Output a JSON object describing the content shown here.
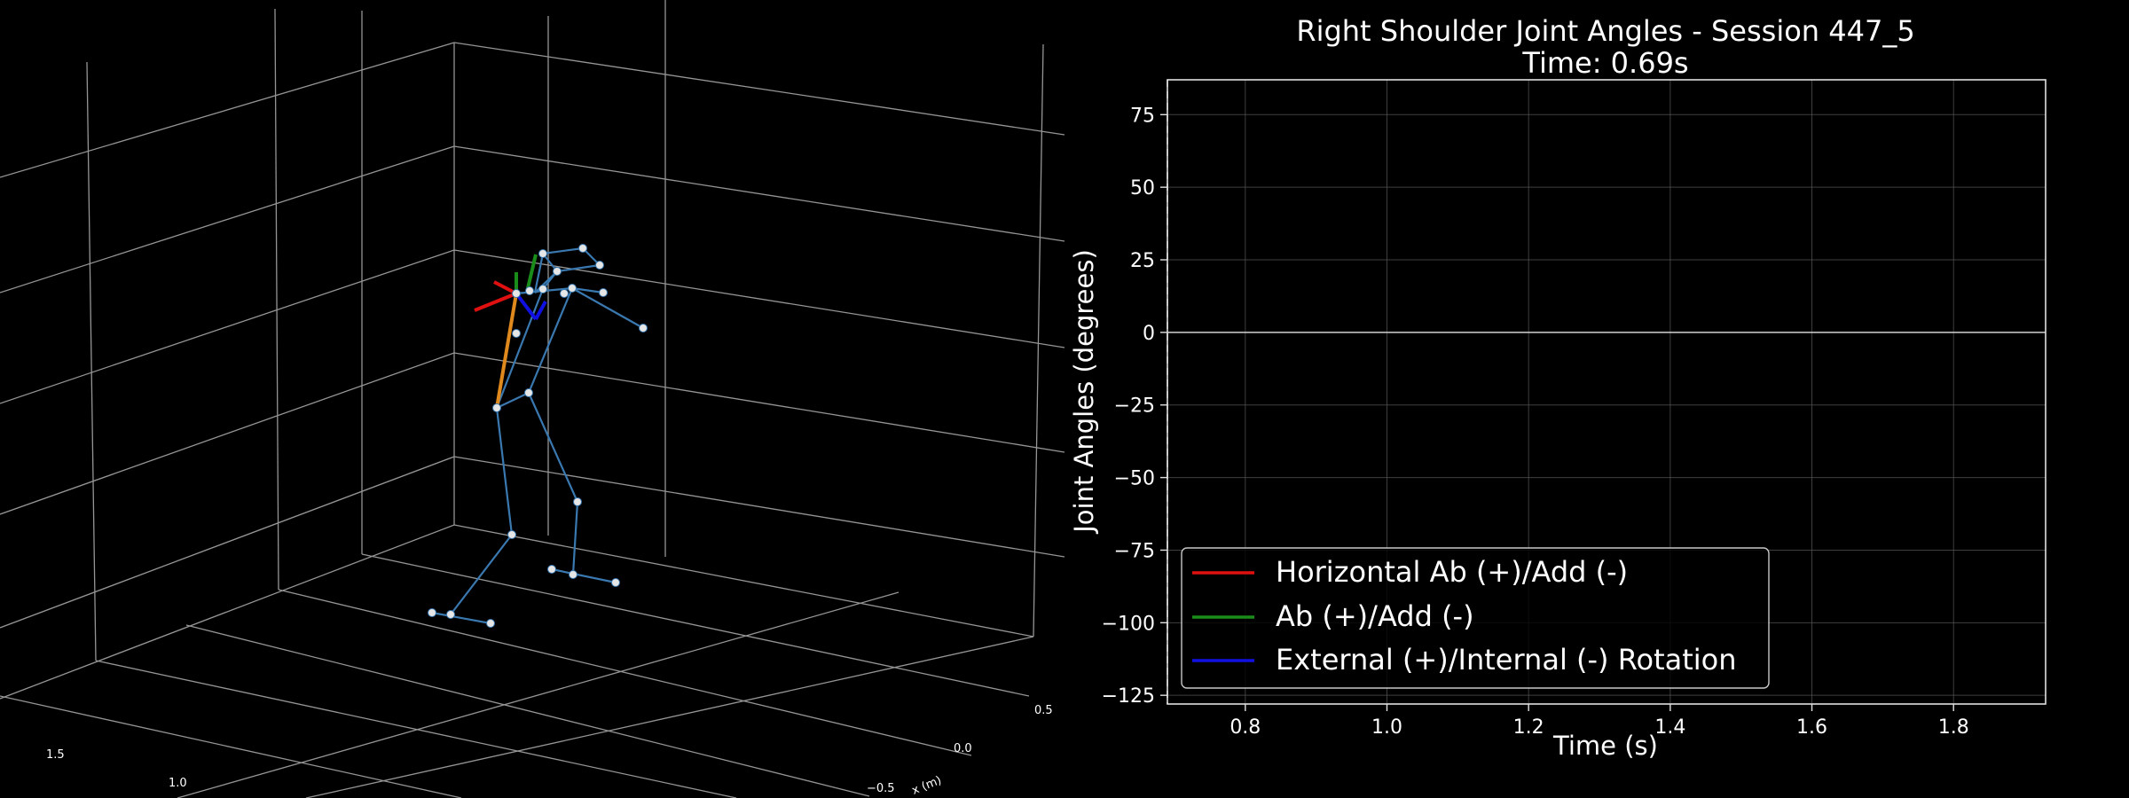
{
  "skeleton_view": {
    "x_axis_label": "x (m)",
    "x_ticks": [
      "0.5",
      "0.0",
      "−0.5"
    ],
    "y_ticks": [
      "1.5",
      "1.0"
    ],
    "colors": {
      "background": "#000000",
      "grid": "#b0b0b0",
      "bones": "#3a78b0",
      "joints": "#e6e6e6",
      "upper_arm": "#e08a1e",
      "axis_x": "#e01010",
      "axis_y": "#1a8c1a",
      "axis_z": "#1010e0"
    }
  },
  "chart_data": {
    "type": "line",
    "title": "Right Shoulder Joint Angles - Session 447_5",
    "subtitle": "Time: 0.69s",
    "xlabel": "Time (s)",
    "ylabel": "Joint Angles (degrees)",
    "xlim": [
      0.69,
      1.93
    ],
    "ylim": [
      -128,
      87
    ],
    "x_ticks": [
      0.8,
      1.0,
      1.2,
      1.4,
      1.6,
      1.8
    ],
    "x_tick_labels": [
      "0.8",
      "1.0",
      "1.2",
      "1.4",
      "1.6",
      "1.8"
    ],
    "y_ticks": [
      75,
      50,
      25,
      0,
      -25,
      -50,
      -75,
      -100,
      -125
    ],
    "y_tick_labels": [
      "75",
      "50",
      "25",
      "0",
      "−25",
      "−50",
      "−75",
      "−100",
      "−125"
    ],
    "grid": true,
    "zero_line": 0,
    "current_time": 0.69,
    "legend_position": "lower-left",
    "series": [
      {
        "name": "Horizontal Ab (+)/Add (-)",
        "color": "#e01010",
        "x": [],
        "values": []
      },
      {
        "name": "Ab (+)/Add (-)",
        "color": "#1a8c1a",
        "x": [],
        "values": []
      },
      {
        "name": "External (+)/Internal (-) Rotation",
        "color": "#1010e0",
        "x": [],
        "values": []
      }
    ]
  }
}
